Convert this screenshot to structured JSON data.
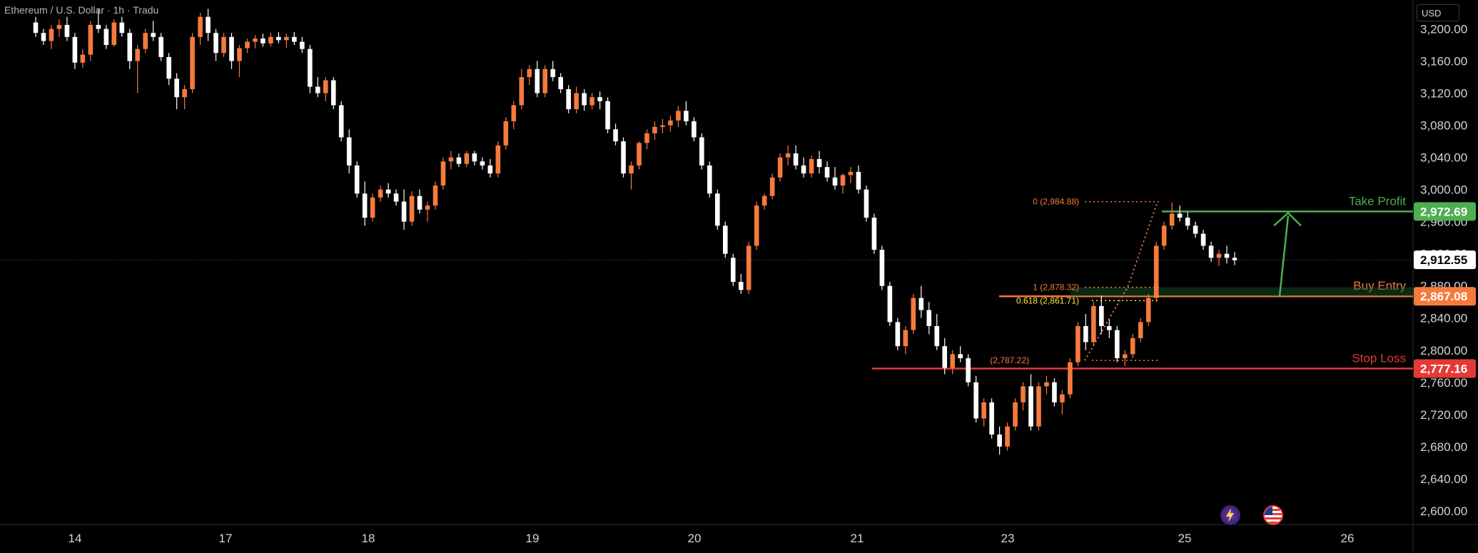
{
  "header": {
    "symbol_title": "Ethereum / U.S. Dollar · 1h · Tradu",
    "currency": "USD"
  },
  "colors": {
    "background": "#000000",
    "bull_candle": "#f57a3d",
    "bear_candle": "#ffffff",
    "take_profit": "#4caf50",
    "buy_entry": "#f57a3d",
    "stop_loss": "#e53935",
    "fib": "#f57a3d",
    "fib_golden": "#ffeb3b",
    "axis_text": "#d1d4dc"
  },
  "events": {
    "icons": [
      "lightning-event-icon",
      "us-flag-event-icon"
    ]
  },
  "chart_data": {
    "type": "candlestick",
    "title": "",
    "xlabel": "",
    "ylabel": "",
    "x_ticks": [
      "14",
      "17",
      "18",
      "19",
      "20",
      "21",
      "23",
      "25",
      "26"
    ],
    "y_ticks": [
      "3,200.00",
      "3,160.00",
      "3,120.00",
      "3,080.00",
      "3,040.00",
      "3,000.00",
      "2,960.00",
      "2,920.00",
      "2,880.00",
      "2,840.00",
      "2,800.00",
      "2,760.00",
      "2,720.00",
      "2,680.00",
      "2,640.00",
      "2,600.00"
    ],
    "y_tick_values": [
      3200,
      3160,
      3120,
      3080,
      3040,
      3000,
      2960,
      2920,
      2880,
      2840,
      2800,
      2760,
      2720,
      2680,
      2640,
      2600
    ],
    "ylim": [
      2583,
      3236
    ],
    "current_price": {
      "value": 2912.55,
      "label": "2,912.55"
    },
    "levels": [
      {
        "name": "Take Profit",
        "value": 2972.69,
        "label": "2,972.69",
        "color": "#4caf50"
      },
      {
        "name": "Buy Entry",
        "value": 2867.08,
        "label": "2,867.08",
        "color": "#f57a3d"
      },
      {
        "name": "Stop Loss",
        "value": 2777.16,
        "label": "2,777.16",
        "color": "#e53935"
      }
    ],
    "fib_labels": [
      {
        "text": "0 (2,984.88)",
        "value": 2984.88
      },
      {
        "text": "1 (2,878.32)",
        "value": 2878.32
      },
      {
        "text": "0.618 (2,861.71)",
        "value": 2861.71
      },
      {
        "text": "(2,787.22)",
        "value": 2787.22
      }
    ],
    "trend_path": [
      [
        2787.22,
        2878.32,
        2984.88
      ]
    ],
    "candles_ohlc": [
      [
        3208,
        3215,
        3190,
        3195
      ],
      [
        3195,
        3200,
        3180,
        3185
      ],
      [
        3185,
        3205,
        3175,
        3200
      ],
      [
        3200,
        3212,
        3190,
        3205
      ],
      [
        3205,
        3215,
        3185,
        3190
      ],
      [
        3190,
        3195,
        3150,
        3158
      ],
      [
        3158,
        3175,
        3152,
        3168
      ],
      [
        3168,
        3210,
        3160,
        3205
      ],
      [
        3205,
        3225,
        3195,
        3200
      ],
      [
        3200,
        3205,
        3175,
        3180
      ],
      [
        3180,
        3212,
        3178,
        3208
      ],
      [
        3208,
        3215,
        3190,
        3195
      ],
      [
        3195,
        3200,
        3150,
        3160
      ],
      [
        3160,
        3180,
        3120,
        3175
      ],
      [
        3175,
        3200,
        3170,
        3195
      ],
      [
        3195,
        3210,
        3185,
        3190
      ],
      [
        3190,
        3195,
        3160,
        3165
      ],
      [
        3165,
        3170,
        3130,
        3138
      ],
      [
        3138,
        3145,
        3100,
        3115
      ],
      [
        3115,
        3130,
        3100,
        3125
      ],
      [
        3125,
        3195,
        3120,
        3190
      ],
      [
        3190,
        3220,
        3180,
        3215
      ],
      [
        3215,
        3225,
        3185,
        3195
      ],
      [
        3195,
        3200,
        3160,
        3170
      ],
      [
        3170,
        3195,
        3165,
        3190
      ],
      [
        3190,
        3195,
        3150,
        3160
      ],
      [
        3160,
        3180,
        3140,
        3176
      ],
      [
        3176,
        3188,
        3170,
        3184
      ],
      [
        3184,
        3192,
        3176,
        3188
      ],
      [
        3188,
        3194,
        3178,
        3182
      ],
      [
        3182,
        3195,
        3178,
        3190
      ],
      [
        3190,
        3196,
        3182,
        3186
      ],
      [
        3186,
        3194,
        3176,
        3190
      ],
      [
        3190,
        3196,
        3180,
        3184
      ],
      [
        3184,
        3190,
        3170,
        3175
      ],
      [
        3175,
        3180,
        3120,
        3128
      ],
      [
        3128,
        3140,
        3115,
        3120
      ],
      [
        3120,
        3140,
        3110,
        3136
      ],
      [
        3136,
        3140,
        3100,
        3105
      ],
      [
        3105,
        3110,
        3060,
        3065
      ],
      [
        3065,
        3075,
        3020,
        3030
      ],
      [
        3030,
        3035,
        2990,
        2995
      ],
      [
        2995,
        3010,
        2955,
        2965
      ],
      [
        2965,
        2995,
        2960,
        2990
      ],
      [
        2990,
        3005,
        2985,
        3000
      ],
      [
        3000,
        3008,
        2990,
        2995
      ],
      [
        2995,
        3000,
        2980,
        2985
      ],
      [
        2985,
        3000,
        2950,
        2960
      ],
      [
        2960,
        2998,
        2955,
        2992
      ],
      [
        2992,
        3000,
        2970,
        2975
      ],
      [
        2975,
        2985,
        2960,
        2980
      ],
      [
        2980,
        3010,
        2975,
        3005
      ],
      [
        3005,
        3040,
        3000,
        3035
      ],
      [
        3035,
        3048,
        3025,
        3040
      ],
      [
        3040,
        3045,
        3028,
        3032
      ],
      [
        3032,
        3048,
        3028,
        3045
      ],
      [
        3045,
        3048,
        3030,
        3035
      ],
      [
        3035,
        3040,
        3025,
        3030
      ],
      [
        3030,
        3038,
        3015,
        3020
      ],
      [
        3020,
        3060,
        3015,
        3055
      ],
      [
        3055,
        3090,
        3050,
        3085
      ],
      [
        3085,
        3110,
        3075,
        3105
      ],
      [
        3105,
        3150,
        3100,
        3140
      ],
      [
        3140,
        3155,
        3130,
        3150
      ],
      [
        3150,
        3160,
        3115,
        3120
      ],
      [
        3120,
        3155,
        3115,
        3150
      ],
      [
        3150,
        3160,
        3135,
        3140
      ],
      [
        3140,
        3145,
        3120,
        3125
      ],
      [
        3125,
        3130,
        3095,
        3100
      ],
      [
        3100,
        3128,
        3095,
        3120
      ],
      [
        3120,
        3125,
        3098,
        3105
      ],
      [
        3105,
        3120,
        3100,
        3115
      ],
      [
        3115,
        3122,
        3100,
        3110
      ],
      [
        3110,
        3115,
        3070,
        3075
      ],
      [
        3075,
        3082,
        3055,
        3060
      ],
      [
        3060,
        3065,
        3015,
        3020
      ],
      [
        3020,
        3035,
        3000,
        3030
      ],
      [
        3030,
        3060,
        3025,
        3058
      ],
      [
        3058,
        3075,
        3050,
        3070
      ],
      [
        3070,
        3085,
        3062,
        3078
      ],
      [
        3078,
        3088,
        3070,
        3080
      ],
      [
        3080,
        3092,
        3072,
        3086
      ],
      [
        3086,
        3104,
        3078,
        3098
      ],
      [
        3098,
        3110,
        3080,
        3085
      ],
      [
        3085,
        3090,
        3060,
        3065
      ],
      [
        3065,
        3070,
        3025,
        3030
      ],
      [
        3030,
        3035,
        2990,
        2995
      ],
      [
        2995,
        3000,
        2950,
        2955
      ],
      [
        2955,
        2960,
        2915,
        2920
      ],
      [
        2915,
        2920,
        2880,
        2885
      ],
      [
        2885,
        2895,
        2870,
        2875
      ],
      [
        2875,
        2935,
        2870,
        2930
      ],
      [
        2930,
        2985,
        2925,
        2980
      ],
      [
        2980,
        2995,
        2975,
        2992
      ],
      [
        2992,
        3020,
        2988,
        3015
      ],
      [
        3015,
        3045,
        3010,
        3040
      ],
      [
        3040,
        3055,
        3030,
        3045
      ],
      [
        3045,
        3055,
        3025,
        3030
      ],
      [
        3030,
        3040,
        3015,
        3020
      ],
      [
        3020,
        3042,
        3015,
        3038
      ],
      [
        3038,
        3048,
        3020,
        3028
      ],
      [
        3028,
        3035,
        3010,
        3015
      ],
      [
        3015,
        3028,
        3000,
        3005
      ],
      [
        3005,
        3020,
        2995,
        3018
      ],
      [
        3018,
        3028,
        3008,
        3022
      ],
      [
        3022,
        3030,
        2995,
        3000
      ],
      [
        3000,
        3005,
        2960,
        2965
      ],
      [
        2965,
        2970,
        2920,
        2925
      ],
      [
        2925,
        2930,
        2875,
        2880
      ],
      [
        2880,
        2885,
        2830,
        2835
      ],
      [
        2835,
        2840,
        2800,
        2805
      ],
      [
        2805,
        2830,
        2795,
        2825
      ],
      [
        2825,
        2870,
        2820,
        2865
      ],
      [
        2865,
        2880,
        2840,
        2850
      ],
      [
        2850,
        2860,
        2820,
        2830
      ],
      [
        2830,
        2845,
        2800,
        2805
      ],
      [
        2805,
        2815,
        2770,
        2778
      ],
      [
        2778,
        2800,
        2770,
        2795
      ],
      [
        2795,
        2805,
        2785,
        2790
      ],
      [
        2790,
        2795,
        2755,
        2760
      ],
      [
        2760,
        2768,
        2710,
        2715
      ],
      [
        2715,
        2740,
        2705,
        2735
      ],
      [
        2735,
        2740,
        2690,
        2695
      ],
      [
        2695,
        2705,
        2670,
        2680
      ],
      [
        2680,
        2710,
        2675,
        2705
      ],
      [
        2705,
        2740,
        2700,
        2735
      ],
      [
        2735,
        2760,
        2725,
        2755
      ],
      [
        2755,
        2770,
        2700,
        2705
      ],
      [
        2705,
        2760,
        2700,
        2755
      ],
      [
        2755,
        2768,
        2745,
        2760
      ],
      [
        2760,
        2765,
        2730,
        2735
      ],
      [
        2735,
        2750,
        2720,
        2745
      ],
      [
        2745,
        2790,
        2740,
        2785
      ],
      [
        2785,
        2835,
        2780,
        2830
      ],
      [
        2830,
        2845,
        2800,
        2810
      ],
      [
        2810,
        2860,
        2805,
        2855
      ],
      [
        2855,
        2868,
        2820,
        2830
      ],
      [
        2830,
        2838,
        2815,
        2825
      ],
      [
        2825,
        2830,
        2785,
        2790
      ],
      [
        2790,
        2800,
        2780,
        2795
      ],
      [
        2795,
        2820,
        2790,
        2815
      ],
      [
        2815,
        2840,
        2810,
        2835
      ],
      [
        2835,
        2870,
        2830,
        2865
      ],
      [
        2865,
        2935,
        2860,
        2930
      ],
      [
        2930,
        2960,
        2925,
        2955
      ],
      [
        2955,
        2984,
        2950,
        2970
      ],
      [
        2970,
        2980,
        2960,
        2965
      ],
      [
        2965,
        2972,
        2950,
        2955
      ],
      [
        2955,
        2960,
        2940,
        2945
      ],
      [
        2945,
        2950,
        2925,
        2930
      ],
      [
        2930,
        2935,
        2910,
        2915
      ],
      [
        2915,
        2925,
        2905,
        2920
      ],
      [
        2920,
        2930,
        2908,
        2915
      ],
      [
        2915,
        2922,
        2906,
        2912
      ]
    ]
  }
}
